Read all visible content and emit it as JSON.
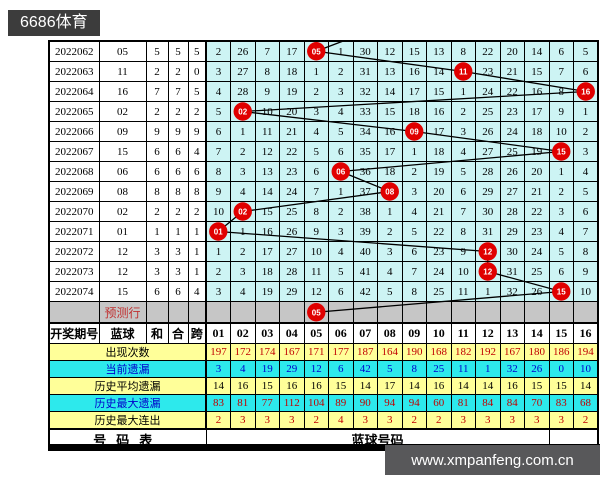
{
  "branding": {
    "site_title": "6686体育",
    "website": "www.xmpanfeng.com.cn"
  },
  "colors": {
    "accent_red": "#e00000",
    "blue_value": "#4646b4",
    "prediction_red": "#c03030",
    "grid_cell_bg": "#cdf4f4",
    "stat_yellow_bg": "#ffff99",
    "stat_cyan_bg": "#2de9ec",
    "prediction_row_bg": "#c6c6c6",
    "stat_red_text": "#c00000",
    "stat_blue_text": "#0000cc",
    "brand_bar_bg": "#3c3c3c",
    "website_bar_bg": "#58585a",
    "trend_line": "#000000"
  },
  "chart_data": {
    "type": "table",
    "columns_left": [
      "开奖期号",
      "蓝球",
      "和",
      "合",
      "跨"
    ],
    "ball_columns": [
      "01",
      "02",
      "03",
      "04",
      "05",
      "06",
      "07",
      "08",
      "09",
      "10",
      "11",
      "12",
      "13",
      "14",
      "15",
      "16"
    ],
    "rows": [
      {
        "period": "2022062",
        "blue": "05",
        "sum": "5",
        "tail": "5",
        "span": "5",
        "hit": 5,
        "hit_label": "05",
        "omissions": [
          2,
          26,
          7,
          17,
          null,
          1,
          30,
          12,
          15,
          13,
          8,
          22,
          20,
          14,
          6,
          5
        ]
      },
      {
        "period": "2022063",
        "blue": "11",
        "sum": "2",
        "tail": "2",
        "span": "0",
        "hit": 11,
        "hit_label": "11",
        "omissions": [
          3,
          27,
          8,
          18,
          1,
          2,
          31,
          13,
          16,
          14,
          null,
          23,
          21,
          15,
          7,
          6
        ]
      },
      {
        "period": "2022064",
        "blue": "16",
        "sum": "7",
        "tail": "7",
        "span": "5",
        "hit": 16,
        "hit_label": "16",
        "omissions": [
          4,
          28,
          9,
          19,
          2,
          3,
          32,
          14,
          17,
          15,
          1,
          24,
          22,
          16,
          8,
          null
        ]
      },
      {
        "period": "2022065",
        "blue": "02",
        "sum": "2",
        "tail": "2",
        "span": "2",
        "hit": 2,
        "hit_label": "02",
        "omissions": [
          5,
          null,
          10,
          20,
          3,
          4,
          33,
          15,
          18,
          16,
          2,
          25,
          23,
          17,
          9,
          1
        ]
      },
      {
        "period": "2022066",
        "blue": "09",
        "sum": "9",
        "tail": "9",
        "span": "9",
        "hit": 9,
        "hit_label": "09",
        "omissions": [
          6,
          1,
          11,
          21,
          4,
          5,
          34,
          16,
          null,
          17,
          3,
          26,
          24,
          18,
          10,
          2
        ]
      },
      {
        "period": "2022067",
        "blue": "15",
        "sum": "6",
        "tail": "6",
        "span": "4",
        "hit": 15,
        "hit_label": "15",
        "omissions": [
          7,
          2,
          12,
          22,
          5,
          6,
          35,
          17,
          1,
          18,
          4,
          27,
          25,
          19,
          null,
          3
        ]
      },
      {
        "period": "2022068",
        "blue": "06",
        "sum": "6",
        "tail": "6",
        "span": "6",
        "hit": 6,
        "hit_label": "06",
        "omissions": [
          8,
          3,
          13,
          23,
          6,
          null,
          36,
          18,
          2,
          19,
          5,
          28,
          26,
          20,
          1,
          4
        ]
      },
      {
        "period": "2022069",
        "blue": "08",
        "sum": "8",
        "tail": "8",
        "span": "8",
        "hit": 8,
        "hit_label": "08",
        "omissions": [
          9,
          4,
          14,
          24,
          7,
          1,
          37,
          null,
          3,
          20,
          6,
          29,
          27,
          21,
          2,
          5
        ]
      },
      {
        "period": "2022070",
        "blue": "02",
        "sum": "2",
        "tail": "2",
        "span": "2",
        "hit": 2,
        "hit_label": "02",
        "omissions": [
          10,
          null,
          15,
          25,
          8,
          2,
          38,
          1,
          4,
          21,
          7,
          30,
          28,
          22,
          3,
          6
        ]
      },
      {
        "period": "2022071",
        "blue": "01",
        "sum": "1",
        "tail": "1",
        "span": "1",
        "hit": 1,
        "hit_label": "01",
        "omissions": [
          null,
          1,
          16,
          26,
          9,
          3,
          39,
          2,
          5,
          22,
          8,
          31,
          29,
          23,
          4,
          7
        ]
      },
      {
        "period": "2022072",
        "blue": "12",
        "sum": "3",
        "tail": "3",
        "span": "1",
        "hit": 12,
        "hit_label": "12",
        "omissions": [
          1,
          2,
          17,
          27,
          10,
          4,
          40,
          3,
          6,
          23,
          9,
          null,
          30,
          24,
          5,
          8
        ]
      },
      {
        "period": "2022073",
        "blue": "12",
        "sum": "3",
        "tail": "3",
        "span": "1",
        "hit": 12,
        "hit_label": "12",
        "omissions": [
          2,
          3,
          18,
          28,
          11,
          5,
          41,
          4,
          7,
          24,
          10,
          null,
          31,
          25,
          6,
          9
        ]
      },
      {
        "period": "2022074",
        "blue": "15",
        "sum": "6",
        "tail": "6",
        "span": "4",
        "hit": 15,
        "hit_label": "15",
        "omissions": [
          3,
          4,
          19,
          29,
          12,
          6,
          42,
          5,
          8,
          25,
          11,
          1,
          32,
          26,
          null,
          10
        ]
      }
    ],
    "prediction_row": {
      "label": "预测行",
      "hit": 5,
      "hit_label": "05"
    },
    "stats": [
      {
        "label": "出现次数",
        "bg": "yellow",
        "label_color": "black",
        "val_color": "red",
        "values": [
          197,
          172,
          174,
          167,
          171,
          177,
          187,
          164,
          190,
          168,
          182,
          192,
          167,
          180,
          186,
          194
        ]
      },
      {
        "label": "当前遗漏",
        "bg": "cyan",
        "label_color": "blue",
        "val_color": "blue",
        "values": [
          3,
          4,
          19,
          29,
          12,
          6,
          42,
          5,
          8,
          25,
          11,
          1,
          32,
          26,
          0,
          10
        ]
      },
      {
        "label": "历史平均遗漏",
        "bg": "yellow",
        "label_color": "black",
        "val_color": "black",
        "values": [
          14,
          16,
          15,
          16,
          16,
          15,
          14,
          17,
          14,
          16,
          14,
          14,
          16,
          15,
          15,
          14
        ]
      },
      {
        "label": "历史最大遗漏",
        "bg": "cyan",
        "label_color": "blue",
        "val_color": "red",
        "values": [
          83,
          81,
          77,
          112,
          104,
          89,
          90,
          94,
          94,
          60,
          81,
          84,
          84,
          70,
          83,
          68
        ]
      },
      {
        "label": "历史最大连出",
        "bg": "yellow",
        "label_color": "black",
        "val_color": "red",
        "values": [
          2,
          3,
          3,
          3,
          2,
          4,
          3,
          3,
          2,
          2,
          3,
          3,
          3,
          3,
          3,
          2
        ]
      }
    ],
    "footer": {
      "left": "号码表",
      "center": "蓝球号码"
    }
  }
}
